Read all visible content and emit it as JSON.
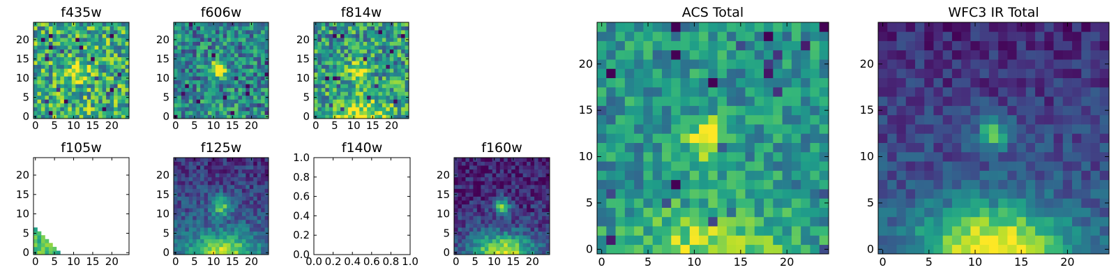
{
  "figure": {
    "background": "#ffffff",
    "colormap": "viridis"
  },
  "chart_data": [
    {
      "type": "heatmap",
      "title": "f435w",
      "xticks": [
        "0",
        "5",
        "10",
        "15",
        "20"
      ],
      "yticks": [
        "0",
        "5",
        "10",
        "15",
        "20"
      ],
      "xlim": [
        -0.5,
        24.5
      ],
      "ylim": [
        -0.5,
        24.5
      ],
      "grid": false,
      "image": "noisy",
      "seed": 7,
      "base": 0.62,
      "noise": 0.32,
      "blob": {
        "x": 11,
        "y": 12,
        "sigma": 1.7,
        "amp": 0.45
      },
      "bottom_glow": 0.05
    },
    {
      "type": "heatmap",
      "title": "f606w",
      "xticks": [
        "0",
        "5",
        "10",
        "15",
        "20"
      ],
      "yticks": [
        "0",
        "5",
        "10",
        "15",
        "20"
      ],
      "xlim": [
        -0.5,
        24.5
      ],
      "ylim": [
        -0.5,
        24.5
      ],
      "grid": false,
      "image": "noisy",
      "seed": 19,
      "base": 0.45,
      "noise": 0.28,
      "blob": {
        "x": 11,
        "y": 12,
        "sigma": 1.6,
        "amp": 0.6
      },
      "bottom_glow": 0.12
    },
    {
      "type": "heatmap",
      "title": "f814w",
      "xticks": [
        "0",
        "5",
        "10",
        "15",
        "20"
      ],
      "yticks": [
        "0",
        "5",
        "10",
        "15",
        "20"
      ],
      "xlim": [
        -0.5,
        24.5
      ],
      "ylim": [
        -0.5,
        24.5
      ],
      "grid": false,
      "image": "noisy",
      "seed": 33,
      "base": 0.55,
      "noise": 0.3,
      "blob": {
        "x": 11,
        "y": 12,
        "sigma": 1.6,
        "amp": 0.5
      },
      "bottom_glow": 0.45
    },
    {
      "type": "heatmap",
      "title": "f105w",
      "xticks": [
        "0",
        "5",
        "10",
        "15",
        "20"
      ],
      "yticks": [
        "0",
        "5",
        "10",
        "15",
        "20"
      ],
      "xlim": [
        -0.5,
        24.5
      ],
      "ylim": [
        -0.5,
        24.5
      ],
      "grid": false,
      "image": "corner",
      "seed": 41
    },
    {
      "type": "heatmap",
      "title": "f125w",
      "xticks": [
        "0",
        "5",
        "10",
        "15",
        "20"
      ],
      "yticks": [
        "0",
        "5",
        "10",
        "15",
        "20"
      ],
      "xlim": [
        -0.5,
        24.5
      ],
      "ylim": [
        -0.5,
        24.5
      ],
      "grid": false,
      "image": "smooth",
      "seed": 53,
      "base": 0.35,
      "noise": 0.15,
      "blob": {
        "x": 12,
        "y": 12,
        "sigma": 1.8,
        "amp": 0.5
      },
      "bottom_glow": 0.6,
      "top_dark": 0.2
    },
    {
      "type": "heatmap",
      "title": "f140w",
      "xticks": [
        "0.0",
        "0.2",
        "0.4",
        "0.6",
        "0.8",
        "1.0"
      ],
      "yticks": [
        "0.0",
        "0.2",
        "0.4",
        "0.6",
        "0.8",
        "1.0"
      ],
      "xlim": [
        0,
        1
      ],
      "ylim": [
        0,
        1
      ],
      "grid": false,
      "image": "empty"
    },
    {
      "type": "heatmap",
      "title": "f160w",
      "xticks": [
        "0",
        "5",
        "10",
        "15",
        "20"
      ],
      "yticks": [
        "0",
        "5",
        "10",
        "15",
        "20"
      ],
      "xlim": [
        -0.5,
        24.5
      ],
      "ylim": [
        -0.5,
        24.5
      ],
      "grid": false,
      "image": "smooth",
      "seed": 67,
      "base": 0.22,
      "noise": 0.15,
      "blob": {
        "x": 12,
        "y": 12,
        "sigma": 1.5,
        "amp": 0.6
      },
      "bottom_glow": 0.75,
      "top_dark": 0.15
    },
    {
      "type": "heatmap",
      "title": "ACS Total",
      "xticks": [
        "0",
        "5",
        "10",
        "15",
        "20"
      ],
      "yticks": [
        "0",
        "5",
        "10",
        "15",
        "20"
      ],
      "xlim": [
        -0.5,
        24.5
      ],
      "ylim": [
        -0.5,
        24.5
      ],
      "grid": false,
      "image": "noisy",
      "seed": 89,
      "base": 0.52,
      "noise": 0.2,
      "blob": {
        "x": 11.5,
        "y": 12,
        "sigma": 1.5,
        "amp": 0.55
      },
      "bottom_glow": 0.38
    },
    {
      "type": "heatmap",
      "title": "WFC3 IR Total",
      "xticks": [
        "0",
        "5",
        "10",
        "15",
        "20"
      ],
      "yticks": [
        "0",
        "5",
        "10",
        "15",
        "20"
      ],
      "xlim": [
        -0.5,
        24.5
      ],
      "ylim": [
        -0.5,
        24.5
      ],
      "grid": false,
      "image": "smooth",
      "seed": 97,
      "base": 0.3,
      "noise": 0.12,
      "blob": {
        "x": 12,
        "y": 12.5,
        "sigma": 1.3,
        "amp": 0.5
      },
      "bottom_glow": 0.75,
      "top_dark": 0.18
    }
  ]
}
